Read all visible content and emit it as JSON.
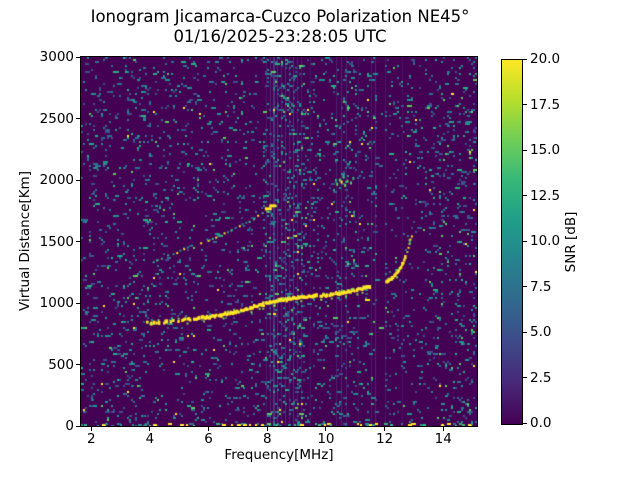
{
  "chart_data": {
    "type": "heatmap",
    "title": "Ionogram Jicamarca-Cuzco Polarization NE45°",
    "subtitle": "01/16/2025-23:28:05 UTC",
    "xlabel": "Frequency[MHz]",
    "ylabel": "Virtual Distance[Km]",
    "xlim": [
      1.65,
      15.15
    ],
    "ylim": [
      0,
      3000
    ],
    "xticks": [
      2,
      4,
      6,
      8,
      10,
      12,
      14
    ],
    "xtick_labels": [
      "2",
      "4",
      "6",
      "8",
      "10",
      "12",
      "14"
    ],
    "yticks": [
      0,
      500,
      1000,
      1500,
      2000,
      2500,
      3000
    ],
    "ytick_labels": [
      "0",
      "500",
      "1000",
      "1500",
      "2000",
      "2500",
      "3000"
    ],
    "grid": false,
    "legend": "none",
    "background_color": "#440154",
    "colormap": "viridis",
    "colorbar": {
      "label": "SNR [dB]",
      "min": 0,
      "max": 20,
      "ticks": [
        0,
        2.5,
        5,
        7.5,
        10,
        12.5,
        15,
        17.5,
        20
      ],
      "tick_labels": [
        "0.0",
        "2.5",
        "5.0",
        "7.5",
        "10.0",
        "12.5",
        "15.0",
        "17.5",
        "20.0"
      ],
      "viridis_stops": [
        "#440154",
        "#482878",
        "#3e4989",
        "#31688e",
        "#26828e",
        "#1f9e89",
        "#35b779",
        "#6ece58",
        "#b5de2b",
        "#fde725"
      ]
    },
    "noise": {
      "seed": 1337,
      "density": 0.065,
      "palette": [
        [
          "#3b528b",
          0.27
        ],
        [
          "#2c728e",
          0.29
        ],
        [
          "#21918c",
          0.24
        ],
        [
          "#27ad81",
          0.12
        ],
        [
          "#5ec962",
          0.06
        ],
        [
          "#fde725",
          0.02
        ]
      ]
    },
    "interference": {
      "bands": [
        [
          1.65,
          4.6,
          1.2
        ],
        [
          7.8,
          9.35,
          2.2
        ],
        [
          9.35,
          10.15,
          1.25
        ],
        [
          10.15,
          11.0,
          1.7
        ],
        [
          11.0,
          11.65,
          1.1
        ],
        [
          11.68,
          11.99,
          0.12
        ],
        [
          12.0,
          12.4,
          1.15
        ],
        [
          13.55,
          15.15,
          1.6
        ]
      ],
      "lines": [
        [
          7.94,
          0.22,
          1
        ],
        [
          8.08,
          0.32,
          1
        ],
        [
          8.18,
          0.42,
          2
        ],
        [
          8.32,
          0.38,
          1
        ],
        [
          8.46,
          0.28,
          1
        ],
        [
          8.6,
          0.34,
          1
        ],
        [
          8.73,
          0.28,
          1
        ],
        [
          8.87,
          0.38,
          1
        ],
        [
          9.01,
          0.26,
          1
        ],
        [
          9.15,
          0.22,
          1
        ],
        [
          9.45,
          0.18,
          1
        ],
        [
          10.33,
          0.26,
          1
        ],
        [
          10.5,
          0.3,
          1
        ],
        [
          10.68,
          0.26,
          1
        ],
        [
          11.1,
          0.15,
          1
        ],
        [
          11.52,
          0.2,
          1
        ],
        [
          11.67,
          0.28,
          1
        ],
        [
          12.03,
          0.18,
          1
        ],
        [
          12.6,
          0.14,
          1
        ]
      ]
    },
    "ground_return": {
      "density": 0.38,
      "colors": [
        [
          "#fde725",
          0.45
        ],
        [
          "#21918c",
          0.33
        ],
        [
          "#35b779",
          0.22
        ]
      ]
    },
    "echo_traces": [
      {
        "name": "F-region first hop",
        "style": "solid",
        "color": "#fde725",
        "edge": "#86d549",
        "thickness": 3,
        "step": 1.4,
        "jitter": 2,
        "gap": 0.07,
        "gap_early_mhz": 5.6,
        "gap_early": 0.28,
        "points": [
          [
            3.82,
            840
          ],
          [
            4.1,
            836
          ],
          [
            4.45,
            844
          ],
          [
            4.8,
            852
          ],
          [
            5.2,
            864
          ],
          [
            5.6,
            876
          ],
          [
            6.0,
            888
          ],
          [
            6.4,
            902
          ],
          [
            6.8,
            922
          ],
          [
            7.2,
            946
          ],
          [
            7.6,
            976
          ],
          [
            8.0,
            1002
          ],
          [
            8.4,
            1020
          ],
          [
            8.8,
            1036
          ],
          [
            9.2,
            1048
          ],
          [
            9.6,
            1057
          ],
          [
            10.0,
            1063
          ],
          [
            10.4,
            1076
          ],
          [
            10.8,
            1094
          ],
          [
            11.2,
            1116
          ],
          [
            11.5,
            1136
          ]
        ]
      },
      {
        "name": "first hop critical-frequency rise",
        "style": "solid",
        "color": "#fde725",
        "edge": "#86d549",
        "thickness": 3,
        "step": 1.2,
        "jitter": 1.2,
        "gap": 0.1,
        "gap_early_mhz": 0,
        "gap_early": 0,
        "points": [
          [
            12.02,
            1168
          ],
          [
            12.25,
            1208
          ],
          [
            12.45,
            1262
          ],
          [
            12.6,
            1330
          ],
          [
            12.7,
            1398
          ]
        ]
      },
      {
        "name": "critical-frequency tip dots",
        "style": "dotted",
        "colors": [
          "#fde725",
          "#fde725",
          "#86d549"
        ],
        "spacing": 3,
        "gap": 0.22,
        "dot": 2,
        "jitter": 1.5,
        "points": [
          [
            12.72,
            1420
          ],
          [
            12.76,
            1455
          ],
          [
            12.8,
            1490
          ],
          [
            12.84,
            1520
          ],
          [
            12.88,
            1550
          ]
        ]
      },
      {
        "name": "second hop echo",
        "style": "dotted",
        "colors": [
          "#fde725",
          "#35b779",
          "#21918c"
        ],
        "spacing": 4.5,
        "gap": 0.35,
        "dot": 2,
        "jitter": 1.8,
        "points": [
          [
            3.95,
            1332
          ],
          [
            4.35,
            1368
          ],
          [
            4.75,
            1406
          ],
          [
            5.15,
            1444
          ],
          [
            5.55,
            1482
          ],
          [
            5.95,
            1520
          ],
          [
            6.35,
            1558
          ],
          [
            6.75,
            1600
          ],
          [
            7.15,
            1644
          ],
          [
            7.5,
            1690
          ],
          [
            7.8,
            1736
          ],
          [
            8.05,
            1772
          ]
        ]
      },
      {
        "name": "second hop bright terminus",
        "style": "blob",
        "color": "#fde725",
        "points": [
          [
            8.02,
            1766
          ],
          [
            8.17,
            1790
          ]
        ]
      },
      {
        "name": "second hop of upper trace cluster",
        "style": "cluster",
        "colors": [
          "#fde725",
          "#5ec962",
          "#35b779"
        ],
        "points": [
          [
            10.35,
            1978
          ],
          [
            10.44,
            2012
          ],
          [
            10.5,
            1996
          ],
          [
            10.56,
            2040
          ],
          [
            10.62,
            1968
          ],
          [
            10.7,
            2002
          ],
          [
            10.82,
            1988
          ],
          [
            10.9,
            2025
          ]
        ]
      }
    ]
  }
}
